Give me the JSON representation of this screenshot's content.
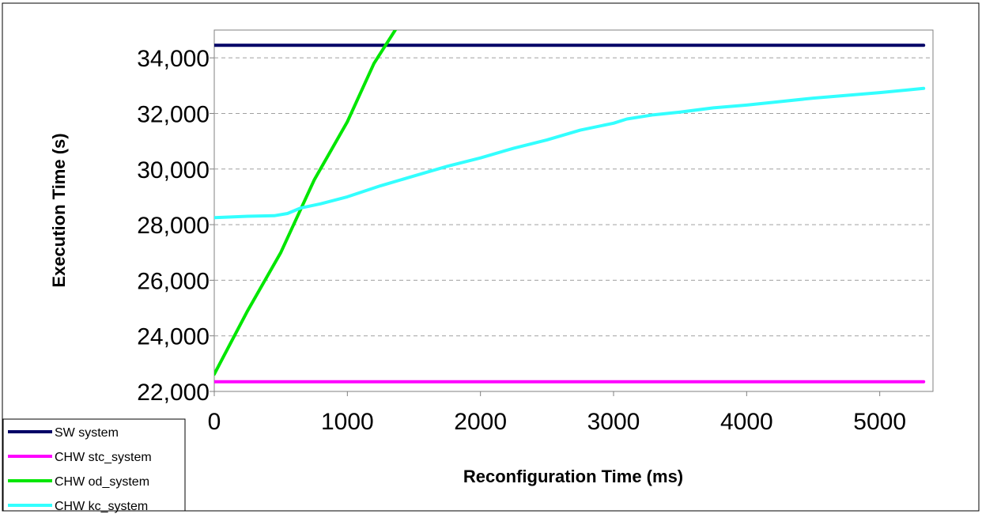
{
  "chart_data": {
    "type": "line",
    "title": "",
    "xlabel": "Reconfiguration Time (ms)",
    "ylabel": "Execution Time (s)",
    "xlim": [
      0,
      5400
    ],
    "ylim": [
      22000,
      35000
    ],
    "x_ticks": [
      0,
      1000,
      2000,
      3000,
      4000,
      5000
    ],
    "x_tick_labels": [
      "0",
      "1000",
      "2000",
      "3000",
      "4000",
      "5000"
    ],
    "y_ticks": [
      22000,
      24000,
      26000,
      28000,
      30000,
      32000,
      34000
    ],
    "y_tick_labels": [
      "22,000",
      "24,000",
      "26,000",
      "28,000",
      "30,000",
      "32,000",
      "34,000"
    ],
    "grid": "horizontal-dashed",
    "legend_position": "bottom-left",
    "series": [
      {
        "name": "SW system",
        "color": "#000066",
        "points": [
          [
            0,
            34450
          ],
          [
            5330,
            34450
          ]
        ]
      },
      {
        "name": "CHW stc_system",
        "color": "#ff00ff",
        "points": [
          [
            0,
            22350
          ],
          [
            5330,
            22350
          ]
        ]
      },
      {
        "name": "CHW od_system",
        "color": "#00e600",
        "points": [
          [
            0,
            22620
          ],
          [
            250,
            24900
          ],
          [
            500,
            27000
          ],
          [
            750,
            29600
          ],
          [
            1000,
            31700
          ],
          [
            1200,
            33800
          ],
          [
            1360,
            35000
          ]
        ]
      },
      {
        "name": "CHW kc_system",
        "color": "#33ffff",
        "points": [
          [
            0,
            28250
          ],
          [
            250,
            28300
          ],
          [
            450,
            28320
          ],
          [
            550,
            28400
          ],
          [
            650,
            28600
          ],
          [
            800,
            28750
          ],
          [
            1000,
            29000
          ],
          [
            1250,
            29400
          ],
          [
            1500,
            29750
          ],
          [
            1750,
            30100
          ],
          [
            2000,
            30400
          ],
          [
            2250,
            30750
          ],
          [
            2500,
            31050
          ],
          [
            2750,
            31400
          ],
          [
            3000,
            31650
          ],
          [
            3100,
            31800
          ],
          [
            3300,
            31950
          ],
          [
            3500,
            32050
          ],
          [
            3750,
            32200
          ],
          [
            4000,
            32300
          ],
          [
            4500,
            32550
          ],
          [
            5000,
            32750
          ],
          [
            5330,
            32900
          ]
        ]
      }
    ]
  }
}
